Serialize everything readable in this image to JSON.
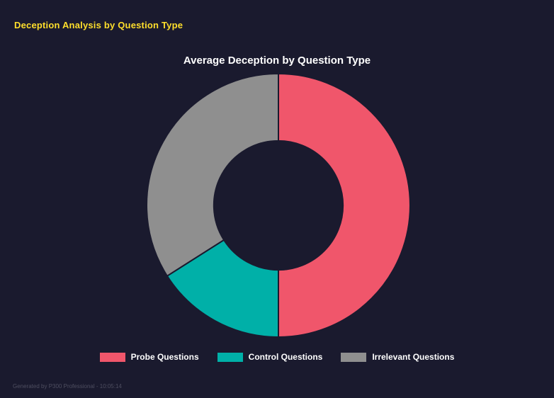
{
  "page": {
    "title": "Deception Analysis by Question Type",
    "footer": "Generated by P300 Professional - 10:05:14"
  },
  "colors": {
    "background": "#1a1a2e",
    "accent_yellow": "#ffdf2b",
    "title_text": "#ffffff",
    "footer_text": "#4e4e60"
  },
  "chart_data": {
    "type": "pie",
    "variant": "donut",
    "title": "Average Deception by Question Type",
    "categories": [
      "Probe Questions",
      "Control Questions",
      "Irrelevant Questions"
    ],
    "values": [
      50,
      16,
      34
    ],
    "values_unit": "percent-of-circle (estimated from segment angles)",
    "colors": [
      "#f0566b",
      "#00b0a8",
      "#8f8f8f"
    ],
    "legend_position": "bottom",
    "start_angle_deg": 0,
    "clockwise": true,
    "inner_radius_ratio": 0.49,
    "outer_radius_px": 186,
    "grid": false
  }
}
